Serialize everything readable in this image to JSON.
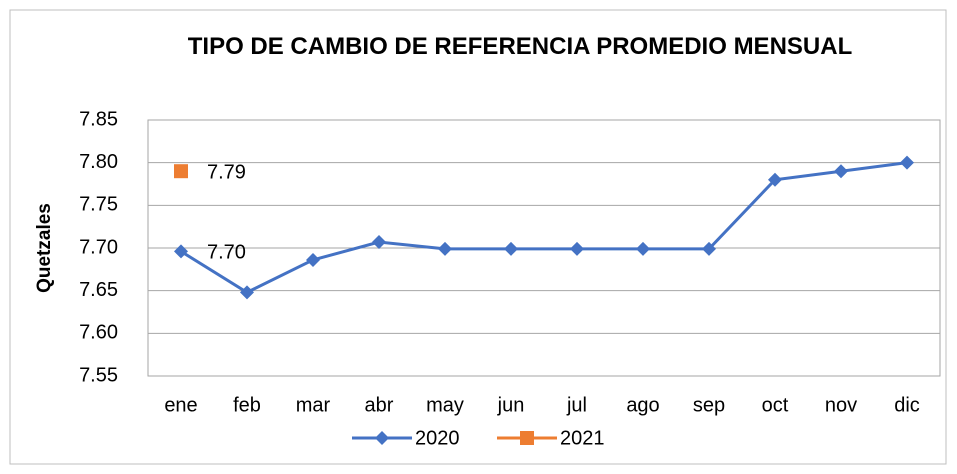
{
  "chart_data": {
    "type": "line",
    "title": "TIPO DE CAMBIO DE REFERENCIA  PROMEDIO MENSUAL",
    "y_label": "Quetzales",
    "categories": [
      "ene",
      "feb",
      "mar",
      "abr",
      "may",
      "jun",
      "jul",
      "ago",
      "sep",
      "oct",
      "nov",
      "dic"
    ],
    "series": [
      {
        "name": "2020",
        "color": "#4472c4",
        "marker": "diamond",
        "values": [
          7.696,
          7.648,
          7.686,
          7.707,
          7.699,
          7.699,
          7.699,
          7.699,
          7.699,
          7.78,
          7.79,
          7.8
        ],
        "value_labels": [
          "7.70",
          null,
          null,
          null,
          null,
          null,
          null,
          null,
          null,
          null,
          null,
          null
        ]
      },
      {
        "name": "2021",
        "color": "#ed7d31",
        "marker": "square",
        "values": [
          7.79,
          null,
          null,
          null,
          null,
          null,
          null,
          null,
          null,
          null,
          null,
          null
        ],
        "value_labels": [
          "7.79",
          null,
          null,
          null,
          null,
          null,
          null,
          null,
          null,
          null,
          null,
          null
        ]
      }
    ],
    "ylim": [
      7.55,
      7.85
    ],
    "yticks": [
      7.55,
      {
        "value": 7.6,
        "label": "7.60"
      },
      7.65,
      {
        "value": 7.7,
        "label": "7.70"
      },
      7.75,
      {
        "value": 7.8,
        "label": "7.80"
      },
      7.85
    ],
    "grid": true,
    "legend": "bottom"
  }
}
